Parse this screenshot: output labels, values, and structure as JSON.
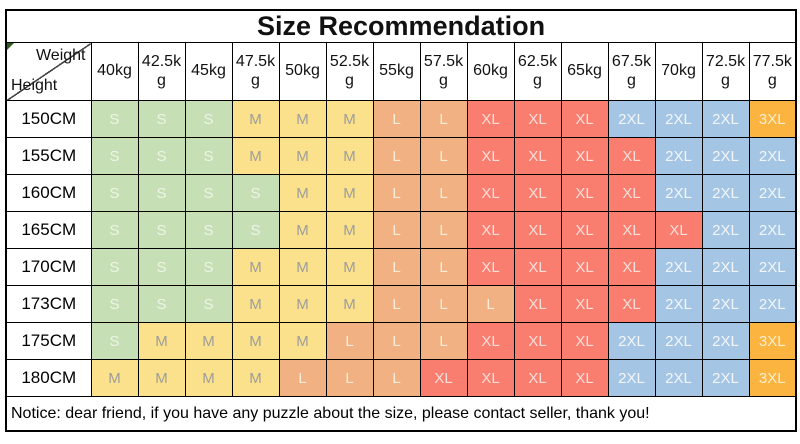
{
  "title": "Size Recommendation",
  "corner": {
    "weight_label": "Weight",
    "height_label": "Height"
  },
  "notice": "Notice: dear friend, if you have any puzzle about the size, please contact seller, thank you!",
  "size_colors": {
    "S": {
      "bg": "#c6dfb4",
      "text": "#eef4e6"
    },
    "M": {
      "bg": "#fbe18b",
      "text": "#9d9d9b"
    },
    "L": {
      "bg": "#f2b183",
      "text": "#f9edda"
    },
    "XL": {
      "bg": "#f97e70",
      "text": "#fcdfd8"
    },
    "2XL": {
      "bg": "#a4c5e4",
      "text": "#f2f6fb"
    },
    "3XL": {
      "bg": "#fbb440",
      "text": "#fdeecf"
    }
  },
  "chart_data": {
    "type": "table",
    "title": "Size Recommendation",
    "xlabel": "Weight",
    "ylabel": "Height",
    "weights": [
      "40kg",
      "42.5kg",
      "45kg",
      "47.5kg",
      "50kg",
      "52.5kg",
      "55kg",
      "57.5kg",
      "60kg",
      "62.5kg",
      "65kg",
      "67.5kg",
      "70kg",
      "72.5kg",
      "77.5kg"
    ],
    "heights": [
      "150CM",
      "155CM",
      "160CM",
      "165CM",
      "170CM",
      "173CM",
      "175CM",
      "180CM"
    ],
    "sizes": [
      [
        "S",
        "S",
        "S",
        "M",
        "M",
        "M",
        "L",
        "L",
        "XL",
        "XL",
        "XL",
        "2XL",
        "2XL",
        "2XL",
        "3XL"
      ],
      [
        "S",
        "S",
        "S",
        "M",
        "M",
        "M",
        "L",
        "L",
        "XL",
        "XL",
        "XL",
        "XL",
        "2XL",
        "2XL",
        "2XL"
      ],
      [
        "S",
        "S",
        "S",
        "S",
        "M",
        "M",
        "L",
        "L",
        "XL",
        "XL",
        "XL",
        "XL",
        "2XL",
        "2XL",
        "2XL"
      ],
      [
        "S",
        "S",
        "S",
        "S",
        "M",
        "M",
        "L",
        "L",
        "XL",
        "XL",
        "XL",
        "XL",
        "XL",
        "2XL",
        "2XL"
      ],
      [
        "S",
        "S",
        "S",
        "M",
        "M",
        "M",
        "L",
        "L",
        "XL",
        "XL",
        "XL",
        "XL",
        "2XL",
        "2XL",
        "2XL"
      ],
      [
        "S",
        "S",
        "S",
        "M",
        "M",
        "M",
        "L",
        "L",
        "L",
        "XL",
        "XL",
        "XL",
        "2XL",
        "2XL",
        "2XL"
      ],
      [
        "S",
        "M",
        "M",
        "M",
        "M",
        "L",
        "L",
        "L",
        "XL",
        "XL",
        "XL",
        "2XL",
        "2XL",
        "2XL",
        "3XL"
      ],
      [
        "M",
        "M",
        "M",
        "M",
        "L",
        "L",
        "L",
        "XL",
        "XL",
        "XL",
        "XL",
        "2XL",
        "2XL",
        "2XL",
        "3XL"
      ]
    ],
    "legend": [
      "S",
      "M",
      "L",
      "XL",
      "2XL",
      "3XL"
    ]
  }
}
